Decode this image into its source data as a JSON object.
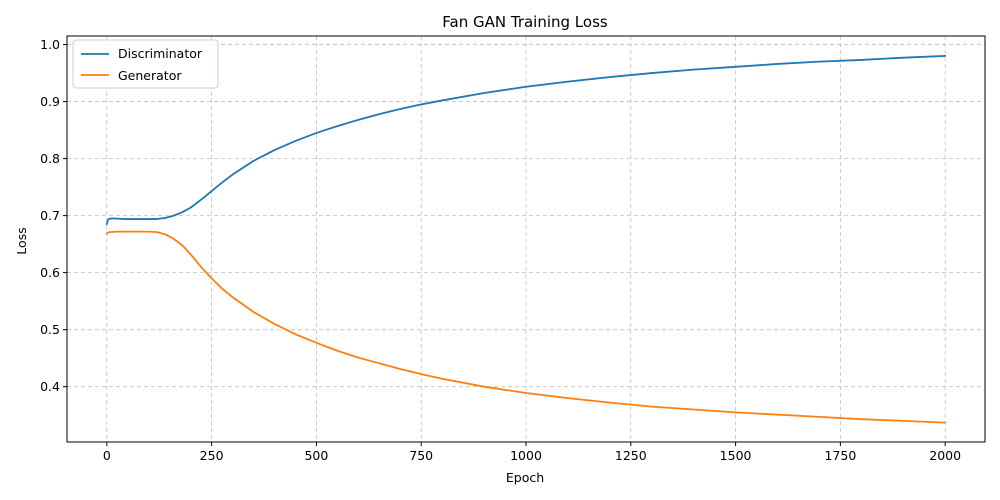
{
  "chart_data": {
    "type": "line",
    "title": "Fan GAN Training Loss",
    "xlabel": "Epoch",
    "ylabel": "Loss",
    "xlim": [
      -95,
      2095
    ],
    "ylim": [
      0.303,
      1.015
    ],
    "xticks": [
      0,
      250,
      500,
      750,
      1000,
      1250,
      1500,
      1750,
      2000
    ],
    "yticks": [
      0.4,
      0.5,
      0.6,
      0.7,
      0.8,
      0.9,
      1.0
    ],
    "xtick_labels": [
      "0",
      "250",
      "500",
      "750",
      "1000",
      "1250",
      "1500",
      "1750",
      "2000"
    ],
    "ytick_labels": [
      "0.4",
      "0.5",
      "0.6",
      "0.7",
      "0.8",
      "0.9",
      "1.0"
    ],
    "grid": true,
    "legend_position": "upper-left",
    "series": [
      {
        "name": "Discriminator",
        "color": "#1f77b4",
        "x": [
          0,
          2,
          5,
          10,
          20,
          40,
          60,
          80,
          100,
          120,
          140,
          160,
          180,
          200,
          225,
          250,
          275,
          300,
          350,
          400,
          450,
          500,
          550,
          600,
          650,
          700,
          750,
          800,
          900,
          1000,
          1100,
          1200,
          1300,
          1400,
          1500,
          1600,
          1700,
          1800,
          1900,
          2000
        ],
        "values": [
          0.685,
          0.692,
          0.694,
          0.695,
          0.695,
          0.694,
          0.694,
          0.694,
          0.694,
          0.694,
          0.696,
          0.7,
          0.706,
          0.714,
          0.728,
          0.743,
          0.758,
          0.772,
          0.796,
          0.815,
          0.831,
          0.845,
          0.857,
          0.868,
          0.878,
          0.887,
          0.895,
          0.902,
          0.915,
          0.926,
          0.935,
          0.943,
          0.95,
          0.956,
          0.961,
          0.966,
          0.97,
          0.973,
          0.977,
          0.98
        ]
      },
      {
        "name": "Generator",
        "color": "#ff7f0e",
        "x": [
          0,
          2,
          5,
          10,
          20,
          40,
          60,
          80,
          100,
          120,
          140,
          160,
          180,
          200,
          225,
          250,
          275,
          300,
          350,
          400,
          450,
          500,
          550,
          600,
          650,
          700,
          750,
          800,
          900,
          1000,
          1100,
          1200,
          1300,
          1400,
          1500,
          1600,
          1700,
          1800,
          1900,
          2000
        ],
        "values": [
          0.668,
          0.67,
          0.671,
          0.671,
          0.672,
          0.672,
          0.672,
          0.672,
          0.672,
          0.671,
          0.667,
          0.659,
          0.648,
          0.632,
          0.61,
          0.59,
          0.572,
          0.557,
          0.531,
          0.51,
          0.492,
          0.477,
          0.463,
          0.451,
          0.441,
          0.431,
          0.422,
          0.414,
          0.4,
          0.389,
          0.38,
          0.372,
          0.365,
          0.36,
          0.355,
          0.351,
          0.347,
          0.343,
          0.34,
          0.337
        ]
      }
    ]
  }
}
